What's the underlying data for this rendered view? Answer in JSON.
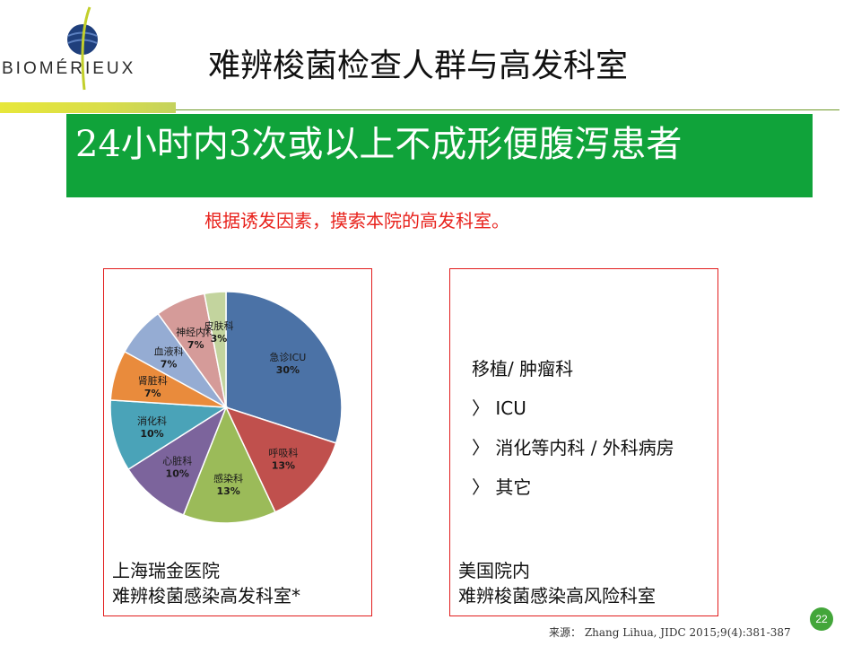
{
  "brand": {
    "logo_text": "BIOMÉRIEUX"
  },
  "header": {
    "title": "难辨梭菌检查人群与高发科室"
  },
  "banner": {
    "text": "24小时内3次或以上不成形便腹泻患者"
  },
  "subtitle": "根据诱发因素，摸索本院的高发科室。",
  "left_panel": {
    "caption_line1": "上海瑞金医院",
    "caption_line2": "难辨梭菌感染高发科室*"
  },
  "right_panel": {
    "items": [
      "移植/ 肿瘤科",
      "〉 ICU",
      "〉 消化等内科 / 外科病房",
      "〉  其它"
    ],
    "caption_line1": "美国院内",
    "caption_line2": "难辨梭菌感染高风险科室"
  },
  "footer": {
    "source": "来源： Zhang Lihua, JIDC 2015;9(4):381-387",
    "page_number": "22"
  },
  "chart_data": {
    "type": "pie",
    "categories": [
      "急诊ICU",
      "呼吸科",
      "感染科",
      "心脏科",
      "消化科",
      "肾脏科",
      "血液科",
      "神经内科",
      "皮肤科"
    ],
    "values": [
      30,
      13,
      13,
      10,
      10,
      7,
      7,
      7,
      3
    ],
    "labels": [
      "30%",
      "13%",
      "13%",
      "10%",
      "10%",
      "7%",
      "7%",
      "7%",
      "3%"
    ],
    "colors": [
      "#4b72a6",
      "#c0504d",
      "#9bbb59",
      "#7c649c",
      "#4aa3b8",
      "#e98b3c",
      "#95acd3",
      "#d59b99",
      "#c3d49e"
    ]
  }
}
